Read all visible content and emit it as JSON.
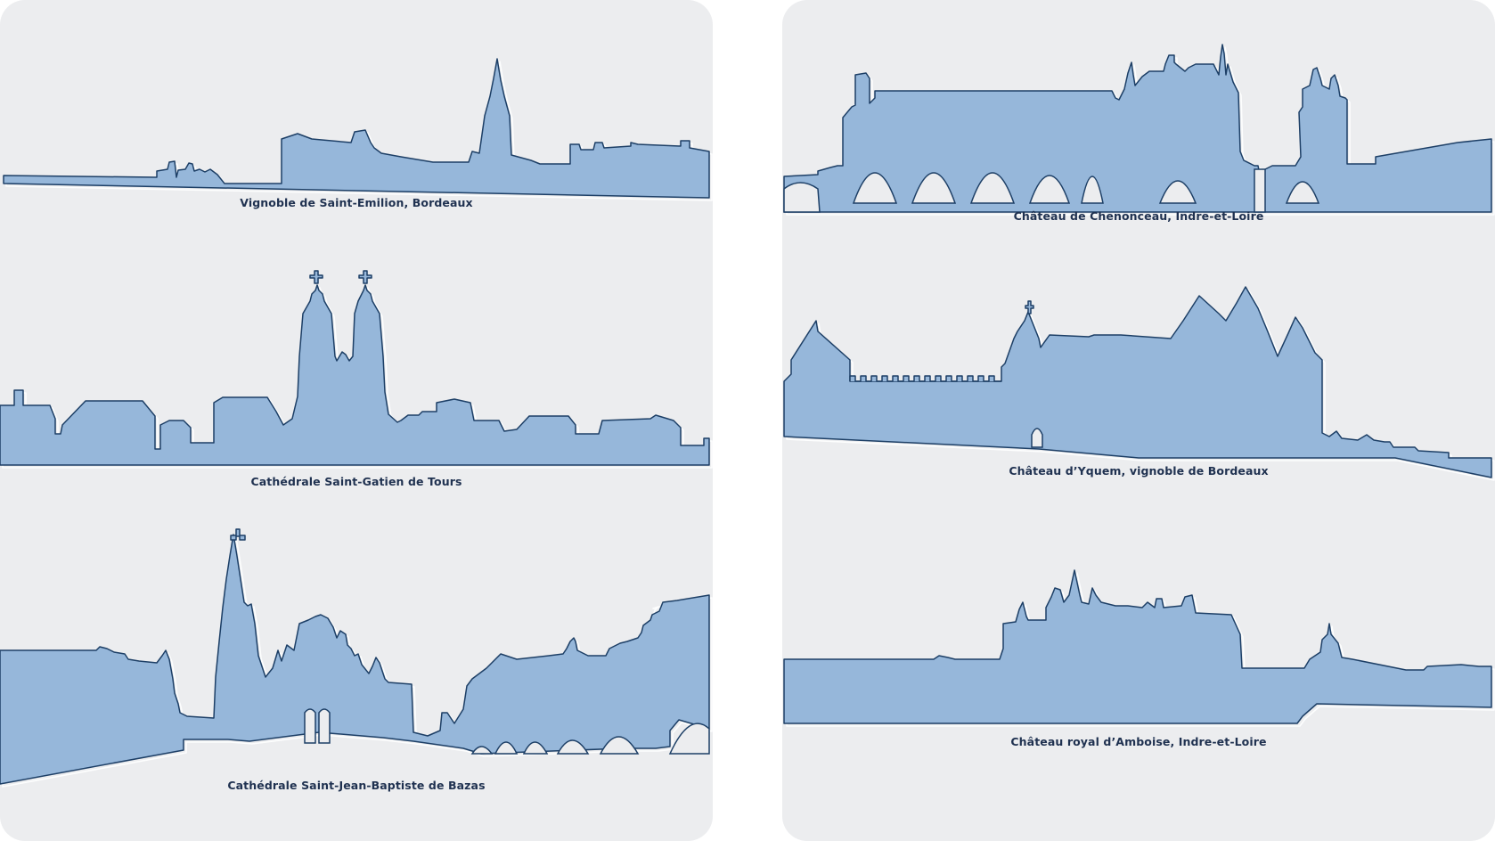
{
  "left_panel": {
    "captions": [
      "Vignoble de Saint-Emilion, Bordeaux",
      "Cathédrale Saint-Gatien de Tours",
      "Cathédrale Saint-Jean-Baptiste de Bazas"
    ]
  },
  "right_panel": {
    "captions": [
      "Château de Chenonceau, Indre-et-Loire",
      "Château d’Yquem, vignoble de Bordeaux",
      "Château royal d’Amboise, Indre-et-Loire"
    ]
  },
  "colors": {
    "panel_background": "#ecedef",
    "silhouette_fill": "#96b7da",
    "silhouette_outline": "#1d3f66",
    "caption_text": "#1f3150"
  }
}
